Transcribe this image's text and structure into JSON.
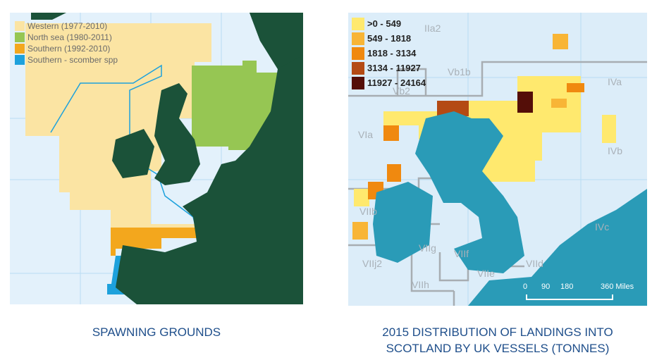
{
  "left_map": {
    "legend": [
      {
        "label": "Western (1977-2010)",
        "color": "#fbe4a3"
      },
      {
        "label": "North sea (1980-2011)",
        "color": "#96c653"
      },
      {
        "label": "Southern (1992-2010)",
        "color": "#f3a71d"
      },
      {
        "label": "Southern - scomber spp",
        "color": "#1da1dc"
      }
    ],
    "caption": "SPAWNING GROUNDS"
  },
  "right_map": {
    "legend": [
      {
        "label": ">0 - 549",
        "color": "#ffe96e"
      },
      {
        "label": "549 - 1818",
        "color": "#f8b536"
      },
      {
        "label": "1818 - 3134",
        "color": "#f0890f"
      },
      {
        "label": "3134 - 11927",
        "color": "#b44a14"
      },
      {
        "label": "11927 - 24164",
        "color": "#540e08"
      }
    ],
    "areas": [
      "IIa2",
      "Vb1b",
      "Vb2",
      "IVa",
      "VIa",
      "IVb",
      "VIIb",
      "VIIc",
      "IVc",
      "VIIg",
      "VIIf",
      "VIIj2",
      "VIIe",
      "VIId",
      "VIIh"
    ],
    "scale": {
      "ticks": [
        "0",
        "90",
        "180",
        "360 Miles"
      ]
    },
    "caption_line1": "2015 DISTRIBUTION OF LANDINGS INTO",
    "caption_line2": "SCOTLAND BY UK VESSELS (TONNES)"
  },
  "colors": {
    "land_left": "#1b5239",
    "land_right": "#2a9bb7",
    "sea": "#e3f1fb"
  }
}
